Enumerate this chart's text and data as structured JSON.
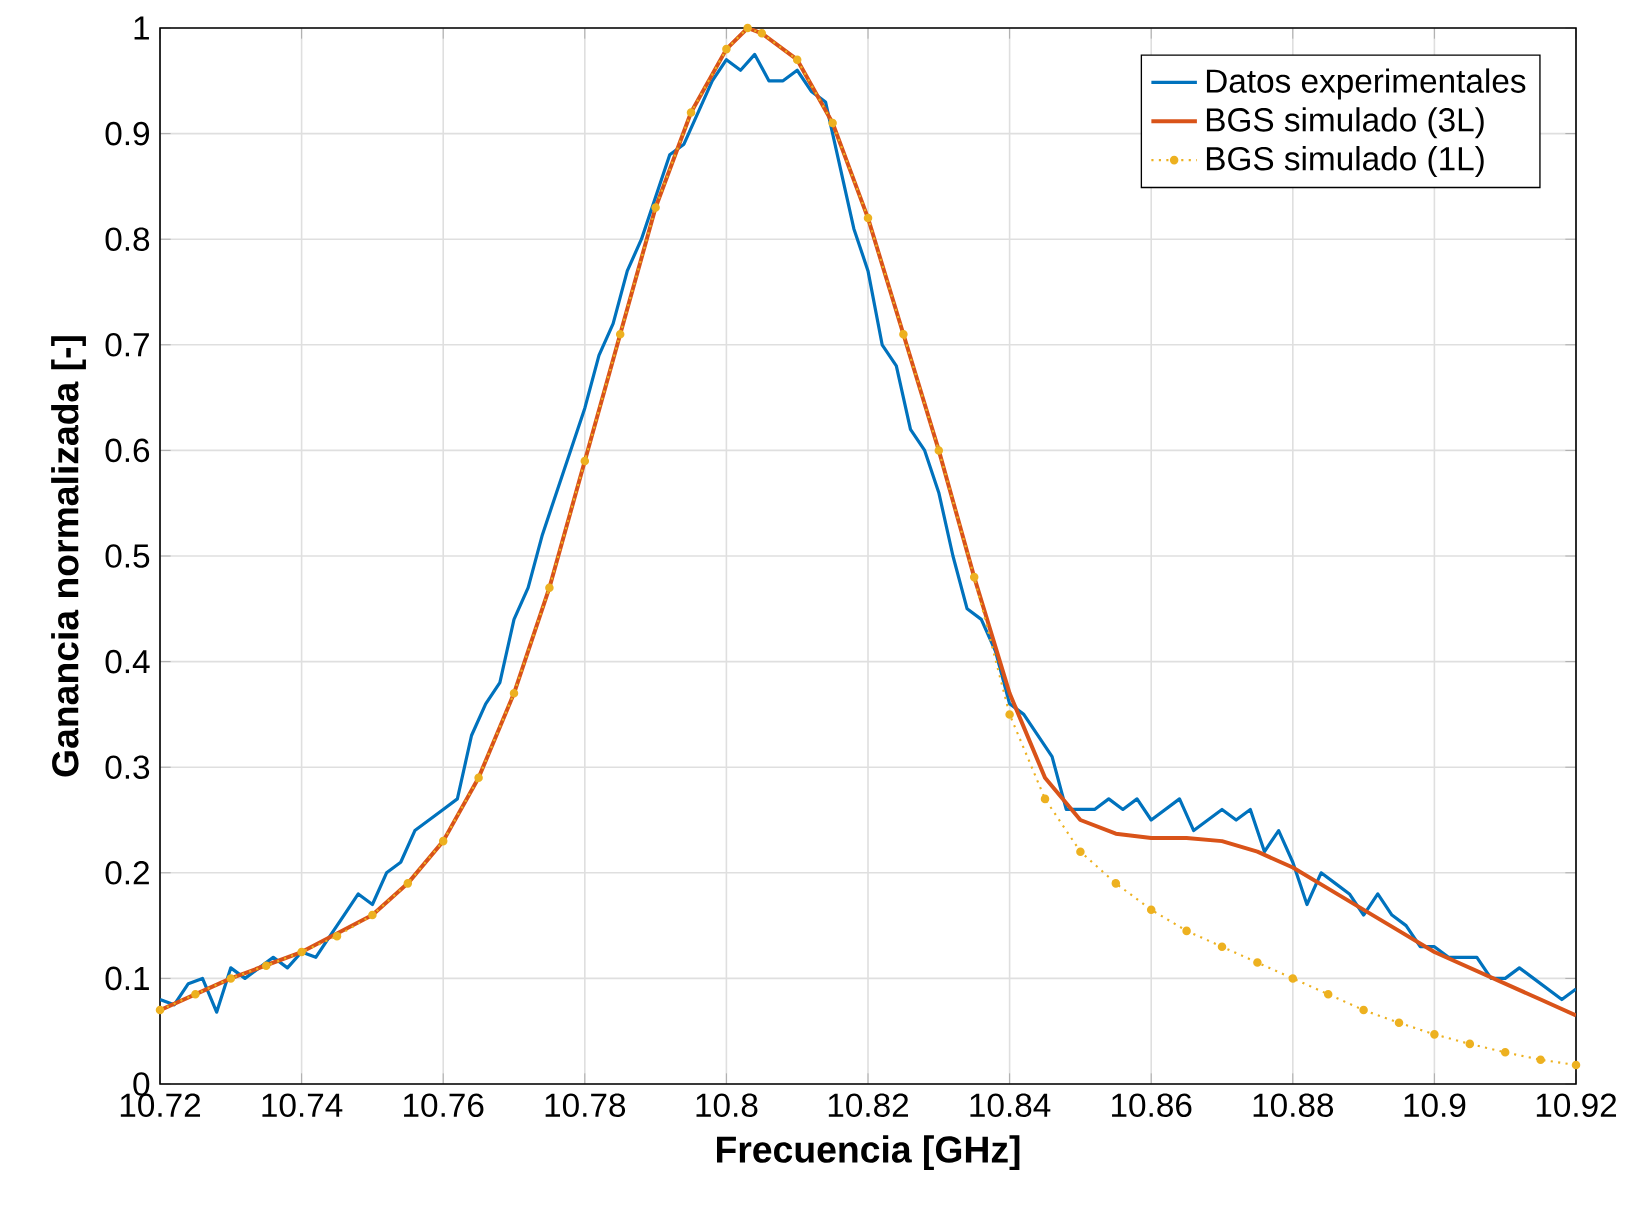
{
  "chart_data": {
    "type": "line",
    "xlabel": "Frecuencia [GHz]",
    "ylabel": "Ganancia normalizada [-]",
    "xlim": [
      10.72,
      10.92
    ],
    "ylim": [
      0,
      1
    ],
    "xticks": [
      10.72,
      10.74,
      10.76,
      10.78,
      10.8,
      10.82,
      10.84,
      10.86,
      10.88,
      10.9,
      10.92
    ],
    "yticks": [
      0,
      0.1,
      0.2,
      0.3,
      0.4,
      0.5,
      0.6,
      0.7,
      0.8,
      0.9,
      1
    ],
    "grid": true,
    "legend": "top right",
    "series": [
      {
        "name": "Datos experimentales",
        "color": "#0072bd",
        "line_style": "solid",
        "marker": "none",
        "x": [
          10.72,
          10.722,
          10.724,
          10.726,
          10.728,
          10.73,
          10.732,
          10.734,
          10.736,
          10.738,
          10.74,
          10.742,
          10.744,
          10.746,
          10.748,
          10.75,
          10.752,
          10.754,
          10.756,
          10.758,
          10.76,
          10.762,
          10.764,
          10.766,
          10.768,
          10.77,
          10.772,
          10.774,
          10.776,
          10.778,
          10.78,
          10.782,
          10.784,
          10.786,
          10.788,
          10.79,
          10.792,
          10.794,
          10.796,
          10.798,
          10.8,
          10.802,
          10.804,
          10.806,
          10.808,
          10.81,
          10.812,
          10.814,
          10.816,
          10.818,
          10.82,
          10.822,
          10.824,
          10.826,
          10.828,
          10.83,
          10.832,
          10.834,
          10.836,
          10.838,
          10.84,
          10.842,
          10.844,
          10.846,
          10.848,
          10.85,
          10.852,
          10.854,
          10.856,
          10.858,
          10.86,
          10.862,
          10.864,
          10.866,
          10.868,
          10.87,
          10.872,
          10.874,
          10.876,
          10.878,
          10.88,
          10.882,
          10.884,
          10.886,
          10.888,
          10.89,
          10.892,
          10.894,
          10.896,
          10.898,
          10.9,
          10.902,
          10.904,
          10.906,
          10.908,
          10.91,
          10.912,
          10.914,
          10.916,
          10.918,
          10.92
        ],
        "values": [
          0.08,
          0.075,
          0.095,
          0.1,
          0.068,
          0.11,
          0.1,
          0.11,
          0.12,
          0.11,
          0.125,
          0.12,
          0.14,
          0.16,
          0.18,
          0.17,
          0.2,
          0.21,
          0.24,
          0.25,
          0.26,
          0.27,
          0.33,
          0.36,
          0.38,
          0.44,
          0.47,
          0.52,
          0.56,
          0.6,
          0.64,
          0.69,
          0.72,
          0.77,
          0.8,
          0.84,
          0.88,
          0.89,
          0.92,
          0.95,
          0.97,
          0.96,
          0.975,
          0.95,
          0.95,
          0.96,
          0.94,
          0.93,
          0.87,
          0.81,
          0.77,
          0.7,
          0.68,
          0.62,
          0.6,
          0.56,
          0.5,
          0.45,
          0.44,
          0.41,
          0.36,
          0.35,
          0.33,
          0.31,
          0.26,
          0.26,
          0.26,
          0.27,
          0.26,
          0.27,
          0.25,
          0.26,
          0.27,
          0.24,
          0.25,
          0.26,
          0.25,
          0.26,
          0.22,
          0.24,
          0.21,
          0.17,
          0.2,
          0.19,
          0.18,
          0.16,
          0.18,
          0.16,
          0.15,
          0.13,
          0.13,
          0.12,
          0.12,
          0.12,
          0.1,
          0.1,
          0.11,
          0.1,
          0.09,
          0.08,
          0.09
        ]
      },
      {
        "name": "BGS simulado (3L)",
        "color": "#d95319",
        "line_style": "solid",
        "marker": "none",
        "x": [
          10.72,
          10.73,
          10.74,
          10.75,
          10.755,
          10.76,
          10.765,
          10.77,
          10.775,
          10.78,
          10.785,
          10.79,
          10.795,
          10.8,
          10.803,
          10.805,
          10.81,
          10.815,
          10.82,
          10.825,
          10.83,
          10.835,
          10.84,
          10.845,
          10.85,
          10.855,
          10.86,
          10.865,
          10.87,
          10.875,
          10.88,
          10.885,
          10.89,
          10.895,
          10.9,
          10.905,
          10.91,
          10.915,
          10.92
        ],
        "values": [
          0.07,
          0.1,
          0.125,
          0.16,
          0.19,
          0.23,
          0.29,
          0.37,
          0.47,
          0.59,
          0.71,
          0.83,
          0.92,
          0.98,
          1.0,
          0.995,
          0.97,
          0.91,
          0.82,
          0.71,
          0.6,
          0.48,
          0.37,
          0.29,
          0.25,
          0.237,
          0.233,
          0.233,
          0.23,
          0.22,
          0.205,
          0.185,
          0.165,
          0.145,
          0.125,
          0.11,
          0.095,
          0.08,
          0.065
        ]
      },
      {
        "name": "BGS simulado (1L)",
        "color": "#edb120",
        "line_style": "dotted",
        "marker": "circle",
        "x": [
          10.72,
          10.725,
          10.73,
          10.735,
          10.74,
          10.745,
          10.75,
          10.755,
          10.76,
          10.765,
          10.77,
          10.775,
          10.78,
          10.785,
          10.79,
          10.795,
          10.8,
          10.803,
          10.805,
          10.81,
          10.815,
          10.82,
          10.825,
          10.83,
          10.835,
          10.84,
          10.845,
          10.85,
          10.855,
          10.86,
          10.865,
          10.87,
          10.875,
          10.88,
          10.885,
          10.89,
          10.895,
          10.9,
          10.905,
          10.91,
          10.915,
          10.92
        ],
        "values": [
          0.07,
          0.085,
          0.1,
          0.112,
          0.125,
          0.14,
          0.16,
          0.19,
          0.23,
          0.29,
          0.37,
          0.47,
          0.59,
          0.71,
          0.83,
          0.92,
          0.98,
          1.0,
          0.995,
          0.97,
          0.91,
          0.82,
          0.71,
          0.6,
          0.48,
          0.35,
          0.27,
          0.22,
          0.19,
          0.165,
          0.145,
          0.13,
          0.115,
          0.1,
          0.085,
          0.07,
          0.058,
          0.047,
          0.038,
          0.03,
          0.023,
          0.018
        ]
      }
    ]
  }
}
